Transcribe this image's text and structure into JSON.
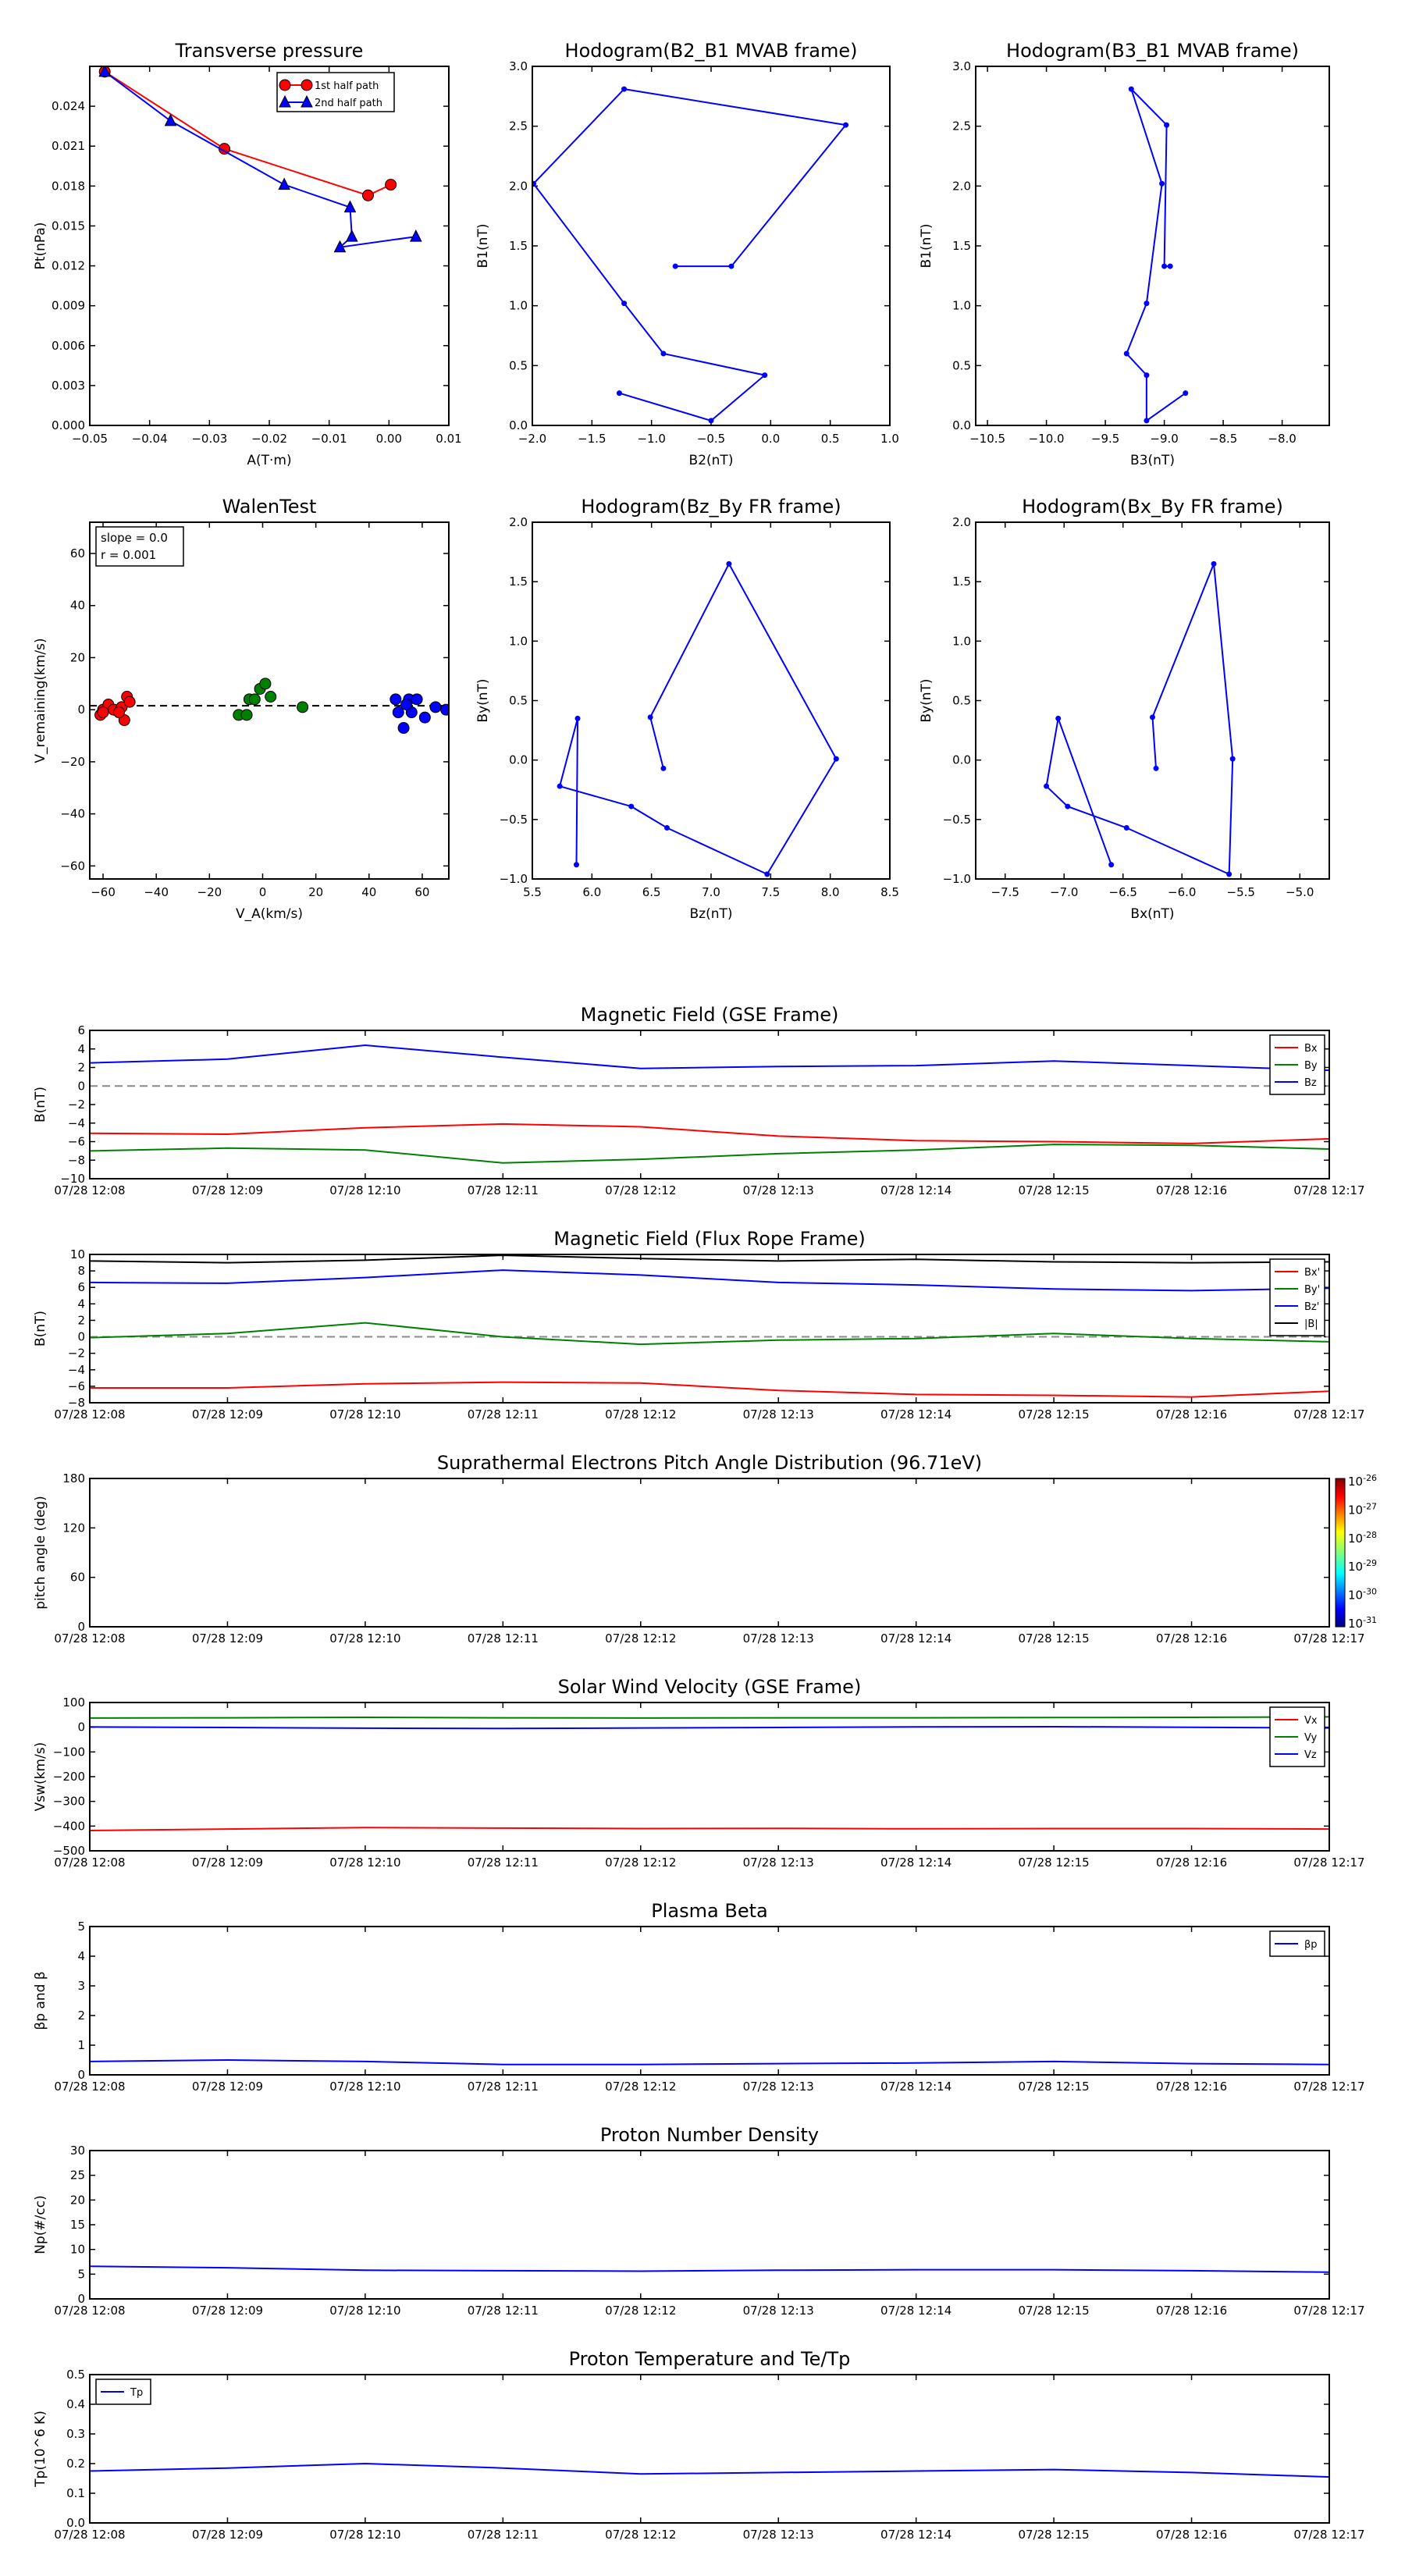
{
  "figure": {
    "background": "#ffffff"
  },
  "time_labels": [
    "07/28 12:08",
    "07/28 12:09",
    "07/28 12:10",
    "07/28 12:11",
    "07/28 12:12",
    "07/28 12:13",
    "07/28 12:14",
    "07/28 12:15",
    "07/28 12:16",
    "07/28 12:17"
  ],
  "chart_data": [
    {
      "id": "transverse-pressure",
      "type": "line",
      "title": "Transverse pressure",
      "xlabel": "A(T·m)",
      "ylabel": "Pt(nPa)",
      "xlim": [
        -0.05,
        0.01
      ],
      "ylim": [
        0,
        0.027
      ],
      "xticks": [
        -0.05,
        -0.04,
        -0.03,
        -0.02,
        -0.01,
        0.0,
        0.01
      ],
      "xticklabels": [
        "−0.05",
        "−0.04",
        "−0.03",
        "−0.02",
        "−0.01",
        "0.00",
        "0.01"
      ],
      "yticks": [
        0,
        0.003,
        0.006,
        0.009,
        0.012,
        0.015,
        0.018,
        0.021,
        0.024
      ],
      "yticklabels": [
        "0.000",
        "0.003",
        "0.006",
        "0.009",
        "0.012",
        "0.015",
        "0.018",
        "0.021",
        "0.024"
      ],
      "legend": "top-center",
      "series": [
        {
          "name": "1st half path",
          "color": "#ff0000",
          "marker": "circle",
          "x": [
            -0.0475,
            -0.0275,
            -0.0035,
            0.0003
          ],
          "y": [
            0.0266,
            0.0208,
            0.0173,
            0.0181
          ]
        },
        {
          "name": "2nd half path",
          "color": "#0000ff",
          "marker": "triangle",
          "x": [
            -0.0475,
            -0.0365,
            -0.0175,
            -0.0065,
            -0.0062,
            -0.0082,
            0.0045
          ],
          "y": [
            0.0266,
            0.0229,
            0.0181,
            0.0164,
            0.0142,
            0.0134,
            0.0142
          ]
        }
      ]
    },
    {
      "id": "hodogram-b2-b1",
      "type": "line",
      "title": "Hodogram(B2_B1 MVAB frame)",
      "xlabel": "B2(nT)",
      "ylabel": "B1(nT)",
      "xlim": [
        -2.0,
        1.0
      ],
      "ylim": [
        0,
        3.0
      ],
      "xticks": [
        -2.0,
        -1.5,
        -1.0,
        -0.5,
        0.0,
        0.5,
        1.0
      ],
      "xticklabels": [
        "−2.0",
        "−1.5",
        "−1.0",
        "−0.5",
        "0.0",
        "0.5",
        "1.0"
      ],
      "yticks": [
        0,
        0.5,
        1.0,
        1.5,
        2.0,
        2.5,
        3.0
      ],
      "yticklabels": [
        "0.0",
        "0.5",
        "1.0",
        "1.5",
        "2.0",
        "2.5",
        "3.0"
      ],
      "series": [
        {
          "color": "#0000ff",
          "marker": "dot",
          "x": [
            -0.8,
            -0.33,
            0.63,
            -1.23,
            -1.99,
            -1.23,
            -0.9,
            -0.05,
            -0.5,
            -1.27
          ],
          "y": [
            1.33,
            1.33,
            2.51,
            2.81,
            2.02,
            1.02,
            0.6,
            0.42,
            0.04,
            0.27
          ]
        }
      ]
    },
    {
      "id": "hodogram-b3-b1",
      "type": "line",
      "title": "Hodogram(B3_B1 MVAB frame)",
      "xlabel": "B3(nT)",
      "ylabel": "B1(nT)",
      "xlim": [
        -10.6,
        -7.6
      ],
      "ylim": [
        0,
        3.0
      ],
      "xticks": [
        -10.5,
        -10.0,
        -9.5,
        -9.0,
        -8.5,
        -8.0
      ],
      "xticklabels": [
        "−10.5",
        "−10.0",
        "−9.5",
        "−9.0",
        "−8.5",
        "−8.0"
      ],
      "yticks": [
        0,
        0.5,
        1.0,
        1.5,
        2.0,
        2.5,
        3.0
      ],
      "yticklabels": [
        "0.0",
        "0.5",
        "1.0",
        "1.5",
        "2.0",
        "2.5",
        "3.0"
      ],
      "series": [
        {
          "color": "#0000ff",
          "marker": "dot",
          "x": [
            -8.95,
            -9.0,
            -8.98,
            -9.28,
            -9.02,
            -9.15,
            -9.32,
            -9.15,
            -9.15,
            -8.82
          ],
          "y": [
            1.33,
            1.33,
            2.51,
            2.81,
            2.02,
            1.02,
            0.6,
            0.42,
            0.04,
            0.27
          ]
        }
      ]
    },
    {
      "id": "walen-test",
      "type": "scatter",
      "title": "WalenTest",
      "xlabel": "V_A(km/s)",
      "ylabel": "V_remaining(km/s)",
      "xlim": [
        -65,
        70
      ],
      "ylim": [
        -65,
        72
      ],
      "xticks": [
        -60,
        -40,
        -20,
        0,
        20,
        40,
        60
      ],
      "xticklabels": [
        "−60",
        "−40",
        "−20",
        "0",
        "20",
        "40",
        "60"
      ],
      "yticks": [
        -60,
        -40,
        -20,
        0,
        20,
        40,
        60
      ],
      "yticklabels": [
        "−60",
        "−40",
        "−20",
        "0",
        "20",
        "40",
        "60"
      ],
      "annotation": [
        "slope = 0.0",
        "r = 0.001"
      ],
      "fit_line": {
        "y": 1.5
      },
      "series": [
        {
          "color": "#ff0000",
          "x": [
            -61,
            -60,
            -58,
            -56,
            -53,
            -52,
            -51,
            -50,
            -60,
            -54
          ],
          "y": [
            -2,
            0,
            2,
            0,
            1,
            -4,
            5,
            3,
            -1,
            -1
          ]
        },
        {
          "color": "#008000",
          "x": [
            -9,
            -5,
            -3,
            -1,
            1,
            3,
            15,
            -6
          ],
          "y": [
            -2,
            4,
            4,
            8,
            10,
            5,
            1,
            -2
          ]
        },
        {
          "color": "#0000ff",
          "x": [
            50,
            51,
            53,
            55,
            56,
            58,
            61,
            65,
            69,
            54
          ],
          "y": [
            4,
            -1,
            -7,
            4,
            -1,
            4,
            -3,
            1,
            0,
            2
          ]
        }
      ]
    },
    {
      "id": "hodogram-bz-by",
      "type": "line",
      "title": "Hodogram(Bz_By FR frame)",
      "xlabel": "Bz(nT)",
      "ylabel": "By(nT)",
      "xlim": [
        5.5,
        8.5
      ],
      "ylim": [
        -1.0,
        2.0
      ],
      "xticks": [
        5.5,
        6.0,
        6.5,
        7.0,
        7.5,
        8.0,
        8.5
      ],
      "xticklabels": [
        "5.5",
        "6.0",
        "6.5",
        "7.0",
        "7.5",
        "8.0",
        "8.5"
      ],
      "yticks": [
        -1.0,
        -0.5,
        0.0,
        0.5,
        1.0,
        1.5,
        2.0
      ],
      "yticklabels": [
        "−1.0",
        "−0.5",
        "0.0",
        "0.5",
        "1.0",
        "1.5",
        "2.0"
      ],
      "series": [
        {
          "color": "#0000ff",
          "marker": "dot",
          "x": [
            6.6,
            6.49,
            7.15,
            8.05,
            7.47,
            6.63,
            6.33,
            5.73,
            5.88,
            5.87
          ],
          "y": [
            -0.07,
            0.36,
            1.65,
            0.01,
            -0.96,
            -0.57,
            -0.39,
            -0.22,
            0.35,
            -0.88
          ]
        }
      ]
    },
    {
      "id": "hodogram-bx-by",
      "type": "line",
      "title": "Hodogram(Bx_By FR frame)",
      "xlabel": "Bx(nT)",
      "ylabel": "By(nT)",
      "xlim": [
        -7.75,
        -4.75
      ],
      "ylim": [
        -1.0,
        2.0
      ],
      "xticks": [
        -7.5,
        -7.0,
        -6.5,
        -6.0,
        -5.5,
        -5.0
      ],
      "xticklabels": [
        "−7.5",
        "−7.0",
        "−6.5",
        "−6.0",
        "−5.5",
        "−5.0"
      ],
      "yticks": [
        -1.0,
        -0.5,
        0.0,
        0.5,
        1.0,
        1.5,
        2.0
      ],
      "yticklabels": [
        "−1.0",
        "−0.5",
        "0.0",
        "0.5",
        "1.0",
        "1.5",
        "2.0"
      ],
      "series": [
        {
          "color": "#0000ff",
          "marker": "dot",
          "x": [
            -6.22,
            -6.25,
            -5.73,
            -5.57,
            -5.6,
            -6.47,
            -6.97,
            -7.15,
            -7.05,
            -6.6
          ],
          "y": [
            -0.07,
            0.36,
            1.65,
            0.01,
            -0.96,
            -0.57,
            -0.39,
            -0.22,
            0.35,
            -0.88
          ]
        }
      ]
    },
    {
      "id": "magnetic-field-gse",
      "type": "line",
      "title": "Magnetic Field (GSE Frame)",
      "ylabel": "B(nT)",
      "ylim": [
        -10,
        6
      ],
      "yticks": [
        -10,
        -8,
        -6,
        -4,
        -2,
        0,
        2,
        4,
        6
      ],
      "yticklabels": [
        "−10",
        "−8",
        "−6",
        "−4",
        "−2",
        "0",
        "2",
        "4",
        "6"
      ],
      "zero_line": true,
      "legend": "top-right",
      "x": [
        0,
        1,
        2,
        3,
        4,
        5,
        6,
        7,
        8,
        9
      ],
      "series": [
        {
          "name": "Bx",
          "color": "#ff0000",
          "values": [
            -5.1,
            -5.2,
            -4.5,
            -4.1,
            -4.4,
            -5.4,
            -5.9,
            -6.0,
            -6.2,
            -5.7
          ]
        },
        {
          "name": "By",
          "color": "#008000",
          "values": [
            -7.0,
            -6.7,
            -6.9,
            -8.3,
            -7.9,
            -7.3,
            -6.9,
            -6.3,
            -6.4,
            -6.8
          ]
        },
        {
          "name": "Bz",
          "color": "#0000ff",
          "values": [
            2.5,
            2.9,
            4.4,
            3.1,
            1.9,
            2.1,
            2.2,
            2.7,
            2.2,
            1.7
          ]
        }
      ]
    },
    {
      "id": "magnetic-field-fr",
      "type": "line",
      "title": "Magnetic Field (Flux Rope Frame)",
      "ylabel": "B(nT)",
      "ylim": [
        -8,
        10
      ],
      "yticks": [
        -8,
        -6,
        -4,
        -2,
        0,
        2,
        4,
        6,
        8,
        10
      ],
      "yticklabels": [
        "−8",
        "−6",
        "−4",
        "−2",
        "0",
        "2",
        "4",
        "6",
        "8",
        "10"
      ],
      "zero_line": true,
      "legend": "top-right",
      "x": [
        0,
        1,
        2,
        3,
        4,
        5,
        6,
        7,
        8,
        9
      ],
      "series": [
        {
          "name": "Bx'",
          "color": "#ff0000",
          "values": [
            -6.2,
            -6.2,
            -5.7,
            -5.5,
            -5.6,
            -6.5,
            -7.0,
            -7.1,
            -7.3,
            -6.6
          ]
        },
        {
          "name": "By'",
          "color": "#008000",
          "values": [
            -0.1,
            0.4,
            1.7,
            0.0,
            -0.9,
            -0.4,
            -0.2,
            0.4,
            -0.2,
            -0.6
          ]
        },
        {
          "name": "Bz'",
          "color": "#0000ff",
          "values": [
            6.6,
            6.5,
            7.2,
            8.1,
            7.5,
            6.6,
            6.3,
            5.8,
            5.6,
            5.9
          ]
        },
        {
          "name": "|B|",
          "color": "#000000",
          "values": [
            9.2,
            9.0,
            9.3,
            9.9,
            9.5,
            9.2,
            9.4,
            9.1,
            9.0,
            9.1
          ]
        }
      ]
    },
    {
      "id": "pitch-angle",
      "type": "heatmap",
      "title": "Suprathermal Electrons Pitch Angle Distribution (96.71eV)",
      "ylabel": "pitch angle (deg)",
      "ylim": [
        0,
        180
      ],
      "yticks": [
        0,
        60,
        120,
        180
      ],
      "yticklabels": [
        "0",
        "60",
        "120",
        "180"
      ],
      "colorbar": {
        "ticklabels": [
          "10",
          "10",
          "10",
          "10",
          "10",
          "10"
        ],
        "exponents": [
          "-26",
          "-27",
          "-28",
          "-29",
          "-30",
          "-31"
        ]
      }
    },
    {
      "id": "solar-wind-velocity",
      "type": "line",
      "title": "Solar Wind Velocity (GSE Frame)",
      "ylabel": "Vsw(km/s)",
      "ylim": [
        -500,
        100
      ],
      "yticks": [
        -500,
        -400,
        -300,
        -200,
        -100,
        0,
        100
      ],
      "yticklabels": [
        "−500",
        "−400",
        "−300",
        "−200",
        "−100",
        "0",
        "100"
      ],
      "legend": "top-right",
      "x": [
        0,
        1,
        2,
        3,
        4,
        5,
        6,
        7,
        8,
        9
      ],
      "series": [
        {
          "name": "Vx",
          "color": "#ff0000",
          "values": [
            -418,
            -412,
            -406,
            -408,
            -410,
            -409,
            -411,
            -410,
            -410,
            -412
          ]
        },
        {
          "name": "Vy",
          "color": "#008000",
          "values": [
            37,
            38,
            40,
            38,
            37,
            38,
            38,
            39,
            40,
            42
          ]
        },
        {
          "name": "Vz",
          "color": "#0000ff",
          "values": [
            1,
            -1,
            -4,
            -5,
            -3,
            -1,
            1,
            2,
            0,
            -3
          ]
        }
      ]
    },
    {
      "id": "plasma-beta",
      "type": "line",
      "title": "Plasma Beta",
      "ylabel": "βp and β",
      "ylim": [
        0,
        5
      ],
      "yticks": [
        0,
        1,
        2,
        3,
        4,
        5
      ],
      "yticklabels": [
        "0",
        "1",
        "2",
        "3",
        "4",
        "5"
      ],
      "legend": "top-right",
      "x": [
        0,
        1,
        2,
        3,
        4,
        5,
        6,
        7,
        8,
        9
      ],
      "series": [
        {
          "name": "βp",
          "color": "#0000ff",
          "values": [
            0.45,
            0.5,
            0.45,
            0.35,
            0.35,
            0.38,
            0.4,
            0.45,
            0.38,
            0.35
          ]
        }
      ]
    },
    {
      "id": "proton-density",
      "type": "line",
      "title": "Proton Number Density",
      "ylabel": "Np(#/cc)",
      "ylim": [
        0,
        30
      ],
      "yticks": [
        0,
        5,
        10,
        15,
        20,
        25,
        30
      ],
      "yticklabels": [
        "0",
        "5",
        "10",
        "15",
        "20",
        "25",
        "30"
      ],
      "x": [
        0,
        1,
        2,
        3,
        4,
        5,
        6,
        7,
        8,
        9
      ],
      "series": [
        {
          "color": "#0000ff",
          "values": [
            6.6,
            6.3,
            5.8,
            5.7,
            5.6,
            5.8,
            5.9,
            5.9,
            5.7,
            5.4
          ]
        }
      ]
    },
    {
      "id": "proton-temperature",
      "type": "line",
      "title": "Proton Temperature and Te/Tp",
      "ylabel": "Tp(10^6 K)",
      "ylim": [
        0,
        0.5
      ],
      "yticks": [
        0,
        0.1,
        0.2,
        0.3,
        0.4,
        0.5
      ],
      "yticklabels": [
        "0.0",
        "0.1",
        "0.2",
        "0.3",
        "0.4",
        "0.5"
      ],
      "legend": "top-left",
      "x": [
        0,
        1,
        2,
        3,
        4,
        5,
        6,
        7,
        8,
        9
      ],
      "series": [
        {
          "name": "Tp",
          "color": "#0000ff",
          "values": [
            0.175,
            0.185,
            0.2,
            0.185,
            0.165,
            0.17,
            0.175,
            0.18,
            0.17,
            0.155
          ]
        }
      ]
    }
  ]
}
